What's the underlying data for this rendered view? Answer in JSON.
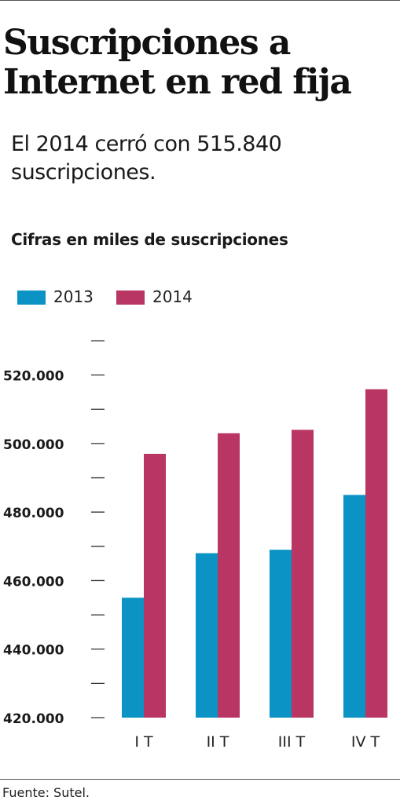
{
  "title_line1": "Suscripciones a",
  "title_line2": "Internet en red fija",
  "subtitle_line1": "El 2014 cerró con 515.840",
  "subtitle_line2": "suscripciones.",
  "source": "Fuente: Sutel.",
  "colors": {
    "s2013": "#0a93c4",
    "s2014": "#b93563",
    "axis": "#333333"
  },
  "chart_data": {
    "type": "bar",
    "ylabel": "Cifras en miles de suscripciones",
    "categories": [
      "I T",
      "II T",
      "III T",
      "IV T"
    ],
    "series": [
      {
        "name": "2013",
        "values": [
          455000,
          468000,
          469000,
          485000
        ]
      },
      {
        "name": "2014",
        "values": [
          497000,
          503000,
          504000,
          515840
        ]
      }
    ],
    "ylim": [
      420000,
      530000
    ],
    "yticks": [
      420000,
      430000,
      440000,
      450000,
      460000,
      470000,
      480000,
      490000,
      500000,
      510000,
      520000,
      530000
    ],
    "ytick_labels": [
      "420.000",
      "",
      "440.000",
      "",
      "460.000",
      "",
      "480.000",
      "",
      "500.000",
      "",
      "520.000",
      ""
    ],
    "grid": false,
    "legend": "top-left"
  }
}
